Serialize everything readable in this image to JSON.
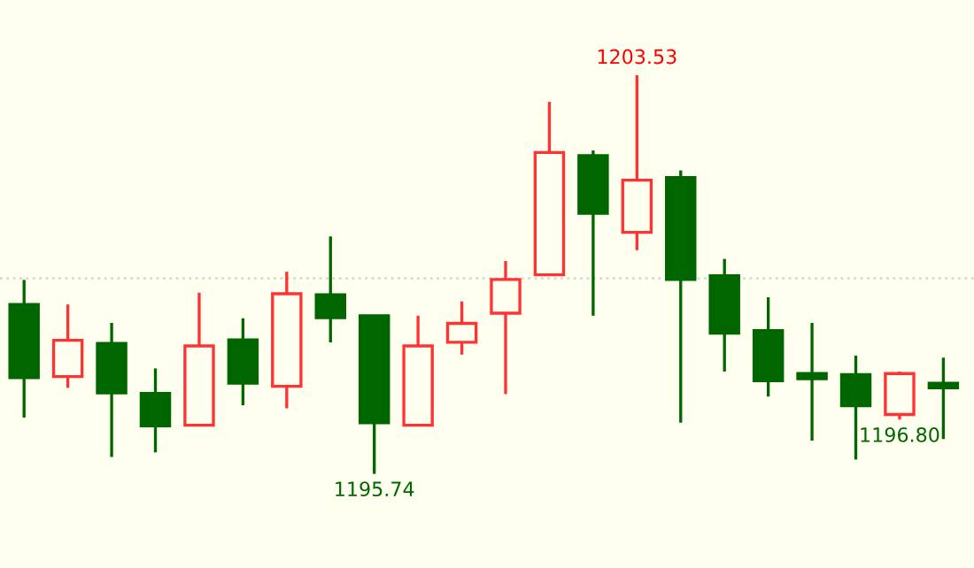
{
  "chart_data": {
    "type": "candlestick",
    "categories": [
      null,
      null,
      null,
      null,
      null,
      null,
      null,
      null,
      null,
      null,
      null,
      null,
      null,
      null,
      null,
      null,
      null,
      null,
      null,
      null,
      null,
      null
    ],
    "ohlc": [
      [
        1199.05,
        1199.53,
        1196.84,
        1197.62
      ],
      [
        1197.64,
        1199.05,
        1197.42,
        1198.35
      ],
      [
        1198.29,
        1198.69,
        1196.07,
        1197.32
      ],
      [
        1197.31,
        1197.8,
        1196.16,
        1196.68
      ],
      [
        1196.69,
        1199.28,
        1196.69,
        1198.24
      ],
      [
        1198.36,
        1198.78,
        1197.08,
        1197.51
      ],
      [
        1197.45,
        1199.69,
        1197.02,
        1199.26
      ],
      [
        1199.24,
        1200.38,
        1198.31,
        1198.79
      ],
      [
        1198.83,
        1198.83,
        1195.74,
        1196.74
      ],
      [
        1196.69,
        1198.83,
        1196.69,
        1198.24
      ],
      [
        1198.31,
        1199.11,
        1198.07,
        1198.68
      ],
      [
        1198.88,
        1199.9,
        1197.3,
        1199.54
      ],
      [
        1199.63,
        1203.01,
        1199.63,
        1202.02
      ],
      [
        1201.96,
        1202.06,
        1198.83,
        1200.83
      ],
      [
        1200.46,
        1203.53,
        1200.11,
        1201.48
      ],
      [
        1201.53,
        1201.67,
        1196.74,
        1199.54
      ],
      [
        1199.61,
        1199.94,
        1197.74,
        1198.49
      ],
      [
        1198.54,
        1199.19,
        1197.25,
        1197.56
      ],
      [
        1197.7,
        1198.69,
        1196.39,
        1197.6
      ],
      [
        1197.68,
        1198.05,
        1196.02,
        1197.07
      ],
      [
        1196.9,
        1197.74,
        1196.8,
        1197.7
      ],
      [
        1197.51,
        1198.01,
        1196.42,
        1197.42
      ]
    ],
    "colors": [
      "#006600",
      "#ff3333",
      "#006600",
      "#006600",
      "#ff3333",
      "#006600",
      "#ff3333",
      "#006600",
      "#006600",
      "#ff3333",
      "#ff3333",
      "#ff3333",
      "#ff3333",
      "#006600",
      "#ff3333",
      "#006600",
      "#006600",
      "#006600",
      "#006600",
      "#006600",
      "#ff3333",
      "#006600"
    ],
    "ylim": [
      1193.9,
      1205.0
    ],
    "ref_lines": [
      {
        "axis": "y",
        "value": 1199.56,
        "color": "#d8d8d8",
        "line_style": "dotted"
      }
    ],
    "annotations": [
      {
        "text": "1203.53",
        "y": 1203.53
      },
      {
        "text": "1195.74",
        "y": 1195.74
      },
      {
        "text": "1196.80",
        "y": 1196.8
      }
    ]
  }
}
